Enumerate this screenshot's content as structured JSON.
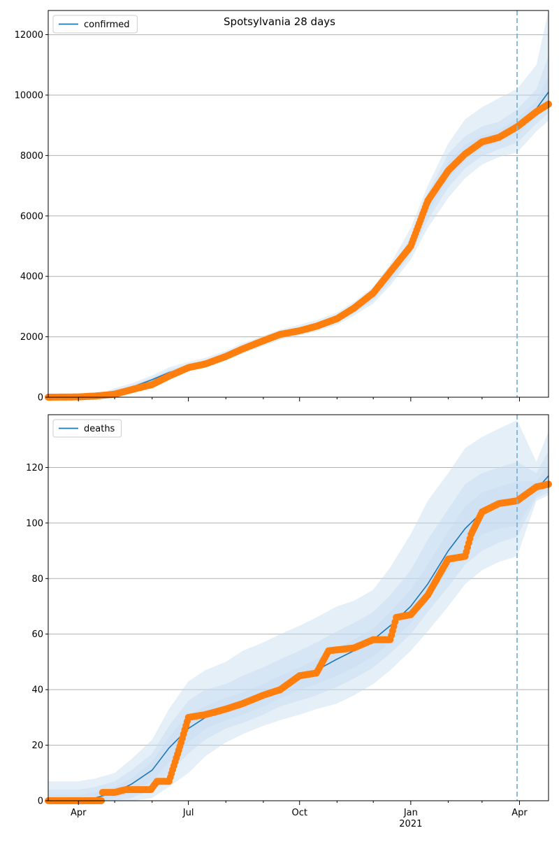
{
  "figure": {
    "title": "Spotsylvania 28 days"
  },
  "colors": {
    "model_line": "#1f77b4",
    "band": "#c6dbef",
    "observed_points": "#ff7f0e",
    "forecast_marker": "#7fb3d5",
    "grid": "#b0b0b0"
  },
  "x_axis": {
    "type": "date",
    "range": [
      "2020-03-07",
      "2021-04-25"
    ],
    "ticks": [
      {
        "date": "2020-04-01",
        "label": "Apr"
      },
      {
        "date": "2020-07-01",
        "label": "Jul"
      },
      {
        "date": "2020-10-01",
        "label": "Oct"
      },
      {
        "date": "2021-01-01",
        "label": "Jan",
        "sublabel": "2021"
      },
      {
        "date": "2021-04-01",
        "label": "Apr"
      }
    ],
    "minor_ticks": [
      "2020-05-01",
      "2020-06-01",
      "2020-08-01",
      "2020-09-01",
      "2020-11-01",
      "2020-12-01",
      "2021-02-01",
      "2021-03-01"
    ],
    "forecast_marker_date": "2021-03-30"
  },
  "chart_data": [
    {
      "type": "line",
      "legend": "confirmed",
      "legend_position": "top-left",
      "ylim": [
        0,
        12800
      ],
      "yticks": [
        0,
        2000,
        4000,
        6000,
        8000,
        10000,
        12000
      ],
      "grid": "horizontal",
      "model": [
        {
          "x": "2020-03-07",
          "y": 0
        },
        {
          "x": "2020-04-01",
          "y": 10
        },
        {
          "x": "2020-04-20",
          "y": 60
        },
        {
          "x": "2020-05-01",
          "y": 200
        },
        {
          "x": "2020-05-15",
          "y": 330
        },
        {
          "x": "2020-06-01",
          "y": 580
        },
        {
          "x": "2020-06-15",
          "y": 820
        },
        {
          "x": "2020-07-01",
          "y": 1000
        },
        {
          "x": "2020-07-15",
          "y": 1120
        },
        {
          "x": "2020-08-01",
          "y": 1350
        },
        {
          "x": "2020-08-15",
          "y": 1600
        },
        {
          "x": "2020-09-01",
          "y": 1850
        },
        {
          "x": "2020-09-15",
          "y": 2050
        },
        {
          "x": "2020-10-01",
          "y": 2200
        },
        {
          "x": "2020-10-15",
          "y": 2340
        },
        {
          "x": "2020-11-01",
          "y": 2580
        },
        {
          "x": "2020-11-15",
          "y": 2900
        },
        {
          "x": "2020-12-01",
          "y": 3350
        },
        {
          "x": "2020-12-15",
          "y": 4000
        },
        {
          "x": "2021-01-01",
          "y": 5000
        },
        {
          "x": "2021-01-15",
          "y": 6300
        },
        {
          "x": "2021-02-01",
          "y": 7500
        },
        {
          "x": "2021-02-15",
          "y": 8100
        },
        {
          "x": "2021-03-01",
          "y": 8450
        },
        {
          "x": "2021-03-15",
          "y": 8650
        },
        {
          "x": "2021-03-30",
          "y": 8950
        },
        {
          "x": "2021-04-15",
          "y": 9550
        },
        {
          "x": "2021-04-25",
          "y": 10100
        }
      ],
      "bands": [
        {
          "name": "outer",
          "lower": [
            0,
            0,
            30,
            140,
            250,
            480,
            700,
            880,
            1000,
            1220,
            1450,
            1700,
            1900,
            2050,
            2180,
            2400,
            2700,
            3100,
            3700,
            4550,
            5600,
            6600,
            7250,
            7700,
            7950,
            8100,
            8800,
            9150
          ],
          "upper": [
            40,
            60,
            130,
            300,
            460,
            720,
            990,
            1170,
            1300,
            1540,
            1790,
            2030,
            2240,
            2400,
            2550,
            2800,
            3150,
            3650,
            4400,
            5600,
            7000,
            8400,
            9200,
            9600,
            9900,
            10200,
            11000,
            12800
          ]
        },
        {
          "name": "middle",
          "lower": [
            0,
            0,
            40,
            165,
            285,
            520,
            750,
            930,
            1050,
            1280,
            1510,
            1760,
            1960,
            2110,
            2240,
            2470,
            2780,
            3200,
            3820,
            4720,
            5860,
            6940,
            7580,
            7980,
            8210,
            8420,
            9050,
            9400
          ],
          "upper": [
            20,
            30,
            95,
            245,
            390,
            650,
            900,
            1080,
            1200,
            1430,
            1690,
            1940,
            2150,
            2300,
            2450,
            2700,
            3030,
            3510,
            4200,
            5290,
            6750,
            8060,
            8640,
            8960,
            9120,
            9520,
            10200,
            11300
          ]
        },
        {
          "name": "inner",
          "lower": [
            0,
            0,
            50,
            185,
            310,
            550,
            785,
            965,
            1085,
            1315,
            1555,
            1800,
            2005,
            2155,
            2290,
            2525,
            2840,
            3275,
            3910,
            4860,
            6080,
            7220,
            7850,
            8240,
            8460,
            8680,
            9300,
            9700
          ],
          "upper": [
            10,
            20,
            75,
            220,
            360,
            615,
            860,
            1040,
            1160,
            1390,
            1650,
            1900,
            2100,
            2250,
            2395,
            2640,
            2965,
            3430,
            4100,
            5150,
            6530,
            7790,
            8360,
            8670,
            8850,
            9220,
            9800,
            10600
          ]
        }
      ],
      "observed": [
        {
          "x": "2020-03-07",
          "y": 0
        },
        {
          "x": "2020-04-01",
          "y": 10
        },
        {
          "x": "2020-04-15",
          "y": 40
        },
        {
          "x": "2020-05-01",
          "y": 100
        },
        {
          "x": "2020-05-15",
          "y": 250
        },
        {
          "x": "2020-06-01",
          "y": 420
        },
        {
          "x": "2020-06-15",
          "y": 700
        },
        {
          "x": "2020-07-01",
          "y": 980
        },
        {
          "x": "2020-07-15",
          "y": 1100
        },
        {
          "x": "2020-08-01",
          "y": 1350
        },
        {
          "x": "2020-08-15",
          "y": 1600
        },
        {
          "x": "2020-09-01",
          "y": 1870
        },
        {
          "x": "2020-09-15",
          "y": 2080
        },
        {
          "x": "2020-10-01",
          "y": 2200
        },
        {
          "x": "2020-10-15",
          "y": 2350
        },
        {
          "x": "2020-11-01",
          "y": 2600
        },
        {
          "x": "2020-11-15",
          "y": 2950
        },
        {
          "x": "2020-12-01",
          "y": 3450
        },
        {
          "x": "2020-12-15",
          "y": 4150
        },
        {
          "x": "2021-01-01",
          "y": 5000
        },
        {
          "x": "2021-01-15",
          "y": 6500
        },
        {
          "x": "2021-02-01",
          "y": 7500
        },
        {
          "x": "2021-02-15",
          "y": 8050
        },
        {
          "x": "2021-03-01",
          "y": 8450
        },
        {
          "x": "2021-03-15",
          "y": 8600
        },
        {
          "x": "2021-03-30",
          "y": 8950
        },
        {
          "x": "2021-04-15",
          "y": 9450
        },
        {
          "x": "2021-04-25",
          "y": 9700
        }
      ]
    },
    {
      "type": "line",
      "legend": "deaths",
      "legend_position": "top-left",
      "ylim": [
        0,
        139
      ],
      "yticks": [
        0,
        20,
        40,
        60,
        80,
        100,
        120
      ],
      "grid": "horizontal",
      "model": [
        {
          "x": "2020-03-07",
          "y": 0
        },
        {
          "x": "2020-04-01",
          "y": 0.5
        },
        {
          "x": "2020-04-15",
          "y": 1
        },
        {
          "x": "2020-05-01",
          "y": 3
        },
        {
          "x": "2020-05-15",
          "y": 6
        },
        {
          "x": "2020-06-01",
          "y": 11
        },
        {
          "x": "2020-06-15",
          "y": 19
        },
        {
          "x": "2020-07-01",
          "y": 26
        },
        {
          "x": "2020-07-15",
          "y": 30
        },
        {
          "x": "2020-08-01",
          "y": 33
        },
        {
          "x": "2020-08-15",
          "y": 35
        },
        {
          "x": "2020-09-01",
          "y": 38
        },
        {
          "x": "2020-09-15",
          "y": 41
        },
        {
          "x": "2020-10-01",
          "y": 44
        },
        {
          "x": "2020-10-15",
          "y": 47
        },
        {
          "x": "2020-11-01",
          "y": 51
        },
        {
          "x": "2020-11-15",
          "y": 54
        },
        {
          "x": "2020-12-01",
          "y": 58
        },
        {
          "x": "2020-12-15",
          "y": 63
        },
        {
          "x": "2021-01-01",
          "y": 70
        },
        {
          "x": "2021-01-15",
          "y": 78
        },
        {
          "x": "2021-02-01",
          "y": 90
        },
        {
          "x": "2021-02-15",
          "y": 98
        },
        {
          "x": "2021-03-01",
          "y": 104
        },
        {
          "x": "2021-03-15",
          "y": 106
        },
        {
          "x": "2021-03-30",
          "y": 108
        },
        {
          "x": "2021-04-15",
          "y": 112
        },
        {
          "x": "2021-04-25",
          "y": 117
        }
      ],
      "bands": [
        {
          "name": "outer",
          "lower": [
            0,
            0,
            0,
            0,
            0,
            1,
            5,
            10,
            16,
            21,
            24,
            27,
            29,
            31,
            33,
            35,
            38,
            42,
            47,
            54,
            61,
            70,
            78,
            83,
            86,
            88,
            108,
            110
          ],
          "upper": [
            7,
            7,
            8,
            10,
            15,
            22,
            33,
            43,
            47,
            50,
            54,
            57,
            60,
            63,
            66,
            70,
            72,
            76,
            84,
            96,
            108,
            118,
            127,
            131,
            134,
            137,
            122,
            133
          ]
        },
        {
          "name": "middle",
          "lower": [
            0,
            0,
            0,
            0,
            1,
            4,
            10,
            17,
            22,
            26,
            28,
            31,
            34,
            36,
            38,
            41,
            44,
            48,
            53,
            60,
            68,
            77,
            85,
            90,
            93,
            95,
            109,
            111
          ],
          "upper": [
            4,
            4,
            5,
            7,
            11,
            17,
            27,
            36,
            40,
            42,
            45,
            48,
            51,
            54,
            57,
            61,
            64,
            68,
            74,
            83,
            94,
            105,
            114,
            118,
            120,
            122,
            118,
            126
          ]
        },
        {
          "name": "inner",
          "lower": [
            0,
            0,
            0,
            1,
            3,
            7,
            14,
            21,
            26,
            29,
            31,
            34,
            37,
            40,
            42,
            45,
            48,
            52,
            57,
            64,
            72,
            83,
            90,
            96,
            98,
            99,
            110,
            113
          ],
          "upper": [
            2,
            2,
            3,
            5,
            8,
            14,
            23,
            31,
            34,
            37,
            39,
            42,
            45,
            48,
            51,
            55,
            58,
            62,
            68,
            76,
            85,
            97,
            106,
            111,
            113,
            115,
            115,
            121
          ]
        }
      ],
      "observed": [
        {
          "x": "2020-03-07",
          "y": 0
        },
        {
          "x": "2020-04-01",
          "y": 0
        },
        {
          "x": "2020-04-20",
          "y": 0
        },
        {
          "x": "2020-04-21",
          "y": 3
        },
        {
          "x": "2020-05-01",
          "y": 3
        },
        {
          "x": "2020-05-10",
          "y": 4
        },
        {
          "x": "2020-05-31",
          "y": 4
        },
        {
          "x": "2020-06-05",
          "y": 7
        },
        {
          "x": "2020-06-15",
          "y": 7
        },
        {
          "x": "2020-06-20",
          "y": 14
        },
        {
          "x": "2020-06-25",
          "y": 21
        },
        {
          "x": "2020-07-01",
          "y": 30
        },
        {
          "x": "2020-07-15",
          "y": 31
        },
        {
          "x": "2020-08-01",
          "y": 33
        },
        {
          "x": "2020-08-15",
          "y": 35
        },
        {
          "x": "2020-09-01",
          "y": 38
        },
        {
          "x": "2020-09-15",
          "y": 40
        },
        {
          "x": "2020-10-01",
          "y": 45
        },
        {
          "x": "2020-10-15",
          "y": 46
        },
        {
          "x": "2020-10-25",
          "y": 54
        },
        {
          "x": "2020-11-15",
          "y": 55
        },
        {
          "x": "2020-12-01",
          "y": 58
        },
        {
          "x": "2020-12-15",
          "y": 58
        },
        {
          "x": "2020-12-20",
          "y": 66
        },
        {
          "x": "2021-01-01",
          "y": 67
        },
        {
          "x": "2021-01-15",
          "y": 74
        },
        {
          "x": "2021-02-01",
          "y": 87
        },
        {
          "x": "2021-02-15",
          "y": 88
        },
        {
          "x": "2021-02-20",
          "y": 96
        },
        {
          "x": "2021-03-01",
          "y": 104
        },
        {
          "x": "2021-03-15",
          "y": 107
        },
        {
          "x": "2021-03-30",
          "y": 108
        },
        {
          "x": "2021-04-15",
          "y": 113
        },
        {
          "x": "2021-04-25",
          "y": 114
        }
      ]
    }
  ]
}
